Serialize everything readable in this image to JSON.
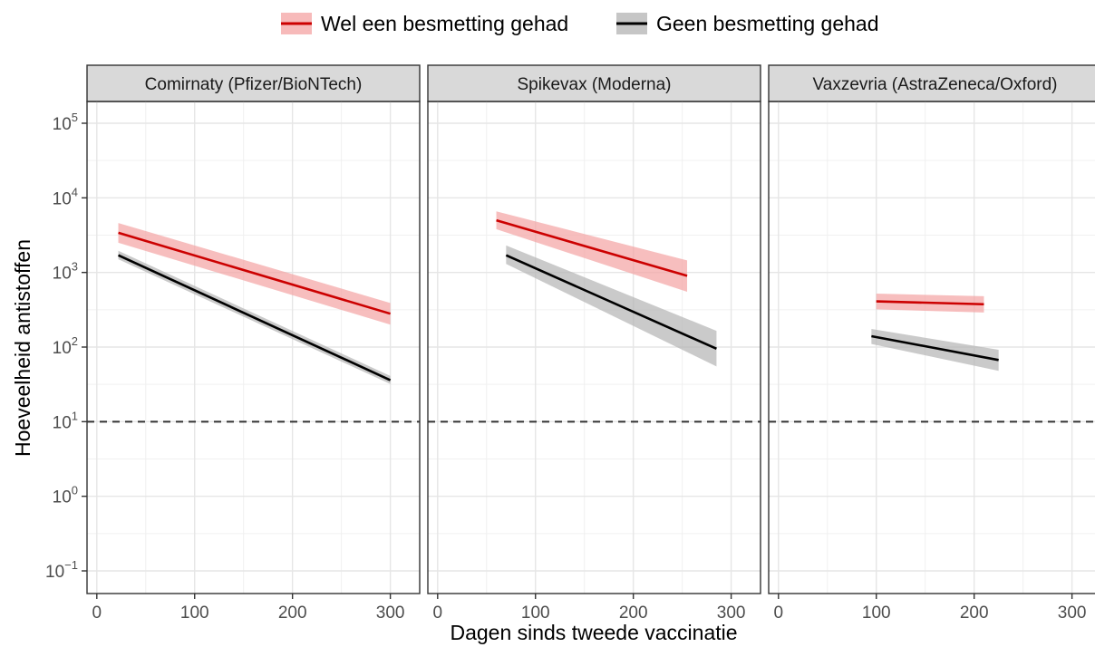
{
  "chart_data": {
    "type": "line",
    "y_scale": "log10",
    "ylabel": "Hoeveelheid antistoffen",
    "xlabel": "Dagen sinds tweede vaccinatie",
    "xlim": [
      -10,
      330
    ],
    "ylim": [
      0.06,
      200000
    ],
    "x_ticks": [
      0,
      100,
      200,
      300
    ],
    "y_ticks": [
      {
        "value": 0.1,
        "base": "10",
        "exp": "−1"
      },
      {
        "value": 1,
        "base": "10",
        "exp": "0"
      },
      {
        "value": 10,
        "base": "10",
        "exp": "1"
      },
      {
        "value": 100,
        "base": "10",
        "exp": "2"
      },
      {
        "value": 1000,
        "base": "10",
        "exp": "3"
      },
      {
        "value": 10000,
        "base": "10",
        "exp": "4"
      },
      {
        "value": 100000,
        "base": "10",
        "exp": "5"
      }
    ],
    "reference_line": {
      "y": 10,
      "style": "dashed"
    },
    "grid": true,
    "legend_position": "top",
    "legend": [
      {
        "label": "Wel een besmetting gehad",
        "color": "#cc0000",
        "band_color": "#f4a3a3"
      },
      {
        "label": "Geen besmetting gehad",
        "color": "#000000",
        "band_color": "#b3b3b3"
      }
    ],
    "panels": [
      {
        "title": "Comirnaty (Pfizer/BioNTech)",
        "series": [
          {
            "name": "Wel een besmetting gehad",
            "x": [
              22,
              300
            ],
            "y": [
              3400,
              280
            ],
            "ci_lower": [
              2500,
              200
            ],
            "ci_upper": [
              4600,
              390
            ]
          },
          {
            "name": "Geen besmetting gehad",
            "x": [
              22,
              300
            ],
            "y": [
              1700,
              36
            ],
            "ci_lower": [
              1500,
              32
            ],
            "ci_upper": [
              1950,
              41
            ]
          }
        ]
      },
      {
        "title": "Spikevax (Moderna)",
        "series": [
          {
            "name": "Wel een besmetting gehad",
            "x": [
              60,
              255
            ],
            "y": [
              5000,
              900
            ],
            "ci_lower": [
              3800,
              550
            ],
            "ci_upper": [
              6600,
              1450
            ]
          },
          {
            "name": "Geen besmetting gehad",
            "x": [
              70,
              285
            ],
            "y": [
              1700,
              95
            ],
            "ci_lower": [
              1300,
              55
            ],
            "ci_upper": [
              2300,
              165
            ]
          }
        ]
      },
      {
        "title": "Vaxzevria (AstraZeneca/Oxford)",
        "series": [
          {
            "name": "Wel een besmetting gehad",
            "x": [
              100,
              210
            ],
            "y": [
              410,
              375
            ],
            "ci_lower": [
              320,
              290
            ],
            "ci_upper": [
              520,
              480
            ]
          },
          {
            "name": "Geen besmetting gehad",
            "x": [
              95,
              225
            ],
            "y": [
              140,
              67
            ],
            "ci_lower": [
              110,
              48
            ],
            "ci_upper": [
              175,
              92
            ]
          }
        ]
      }
    ]
  }
}
